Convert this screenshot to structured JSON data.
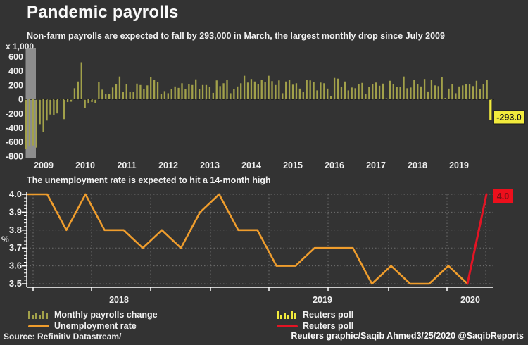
{
  "header": {
    "title": "Pandemic payrolls",
    "subtitle": "Non-farm payrolls are expected to fall by 293,000 in March, the largest monthly drop since July 2009"
  },
  "colors": {
    "background": "#333333",
    "bars": "#a2a14a",
    "poll_bar": "#f2eb3c",
    "line": "#ef9d2d",
    "poll_line": "#e41424",
    "recession_band": "#9d9d9d",
    "yellow_label_bg": "#f2eb3c",
    "yellow_label_text": "#1d1d1d",
    "red_label_bg": "#ed0f1c",
    "red_label_text": "#7c1016",
    "gridline": "#707070",
    "zero_line": "#141414",
    "axis": "#ffffff",
    "text": "#f2f2f2"
  },
  "payrolls": {
    "unit_label": "x 1,000",
    "y_ticks": [
      "600",
      "400",
      "200",
      "0",
      "-200",
      "-400",
      "-600",
      "-800"
    ],
    "x_tick_years": [
      "2009",
      "2010",
      "2011",
      "2012",
      "2013",
      "2014",
      "2015",
      "2016",
      "2017",
      "2018",
      "2019"
    ],
    "poll_label": "-293.0"
  },
  "unemployment": {
    "title": "The unemployment rate is expected to hit a 14-month high",
    "ylabel": "%",
    "y_ticks": [
      "4.0",
      "3.9",
      "3.8",
      "3.7",
      "3.6",
      "3.5"
    ],
    "x_tick_years": [
      "2018",
      "2019",
      "2020"
    ],
    "poll_label": "4.0"
  },
  "legend": {
    "items": [
      {
        "label": "Monthly payrolls change",
        "swatch": "bars-olive"
      },
      {
        "label": "Unemployment rate",
        "swatch": "line-orange"
      },
      {
        "label": "Reuters poll",
        "swatch": "bars-yellow"
      },
      {
        "label": "Reuters poll",
        "swatch": "line-red"
      }
    ]
  },
  "footer": {
    "source": "Source: Refinitiv Datastream/",
    "credit": "Reuters graphic/Saqib Ahmed3/25/2020 @SaqibReports"
  },
  "chart_data": [
    {
      "type": "bar",
      "title": "Monthly payrolls change",
      "unit": "x 1,000",
      "x_start": "2009-01",
      "frequency": "monthly",
      "ylim": [
        -800,
        600
      ],
      "x_tick_labels": [
        "2009",
        "2010",
        "2011",
        "2012",
        "2013",
        "2014",
        "2015",
        "2016",
        "2017",
        "2018",
        "2019"
      ],
      "recession_band_months": [
        0,
        3
      ],
      "values": [
        -700,
        -660,
        -650,
        -680,
        -350,
        -460,
        -300,
        -215,
        -225,
        -200,
        -10,
        -280,
        -40,
        -35,
        155,
        250,
        520,
        -120,
        -60,
        -40,
        -55,
        240,
        135,
        70,
        70,
        165,
        210,
        320,
        100,
        215,
        105,
        100,
        220,
        200,
        145,
        195,
        310,
        270,
        240,
        75,
        115,
        85,
        140,
        180,
        160,
        225,
        145,
        215,
        200,
        280,
        140,
        200,
        200,
        175,
        90,
        265,
        185,
        225,
        275,
        85,
        145,
        180,
        225,
        330,
        235,
        285,
        250,
        210,
        270,
        245,
        330,
        255,
        200,
        265,
        85,
        250,
        275,
        205,
        225,
        150,
        100,
        270,
        265,
        240,
        125,
        235,
        225,
        150,
        45,
        300,
        290,
        175,
        250,
        125,
        165,
        155,
        215,
        230,
        70,
        175,
        210,
        235,
        190,
        220,
        15,
        260,
        215,
        175,
        175,
        320,
        155,
        165,
        270,
        210,
        180,
        285,
        110,
        275,
        195,
        185,
        310,
        20,
        150,
        215,
        85,
        180,
        195,
        210,
        210,
        185,
        260,
        145,
        215,
        273
      ],
      "poll_point": {
        "series": "Reuters poll",
        "x": "2020-03",
        "value": -293.0,
        "label": "-293.0"
      }
    },
    {
      "type": "line",
      "title": "The unemployment rate is expected to hit a 14-month high",
      "ylabel": "%",
      "x_start": "2018-03",
      "frequency": "monthly",
      "ylim": [
        3.5,
        4.0
      ],
      "x_tick_labels": [
        "2018",
        "2019",
        "2020"
      ],
      "values": [
        4.0,
        4.0,
        3.8,
        4.0,
        3.8,
        3.8,
        3.7,
        3.8,
        3.7,
        3.9,
        4.0,
        3.8,
        3.8,
        3.6,
        3.6,
        3.7,
        3.7,
        3.7,
        3.5,
        3.6,
        3.5,
        3.5,
        3.6,
        3.5
      ],
      "poll_point": {
        "series": "Reuters poll",
        "x": "2020-03",
        "value": 4.0,
        "label": "4.0"
      }
    }
  ]
}
